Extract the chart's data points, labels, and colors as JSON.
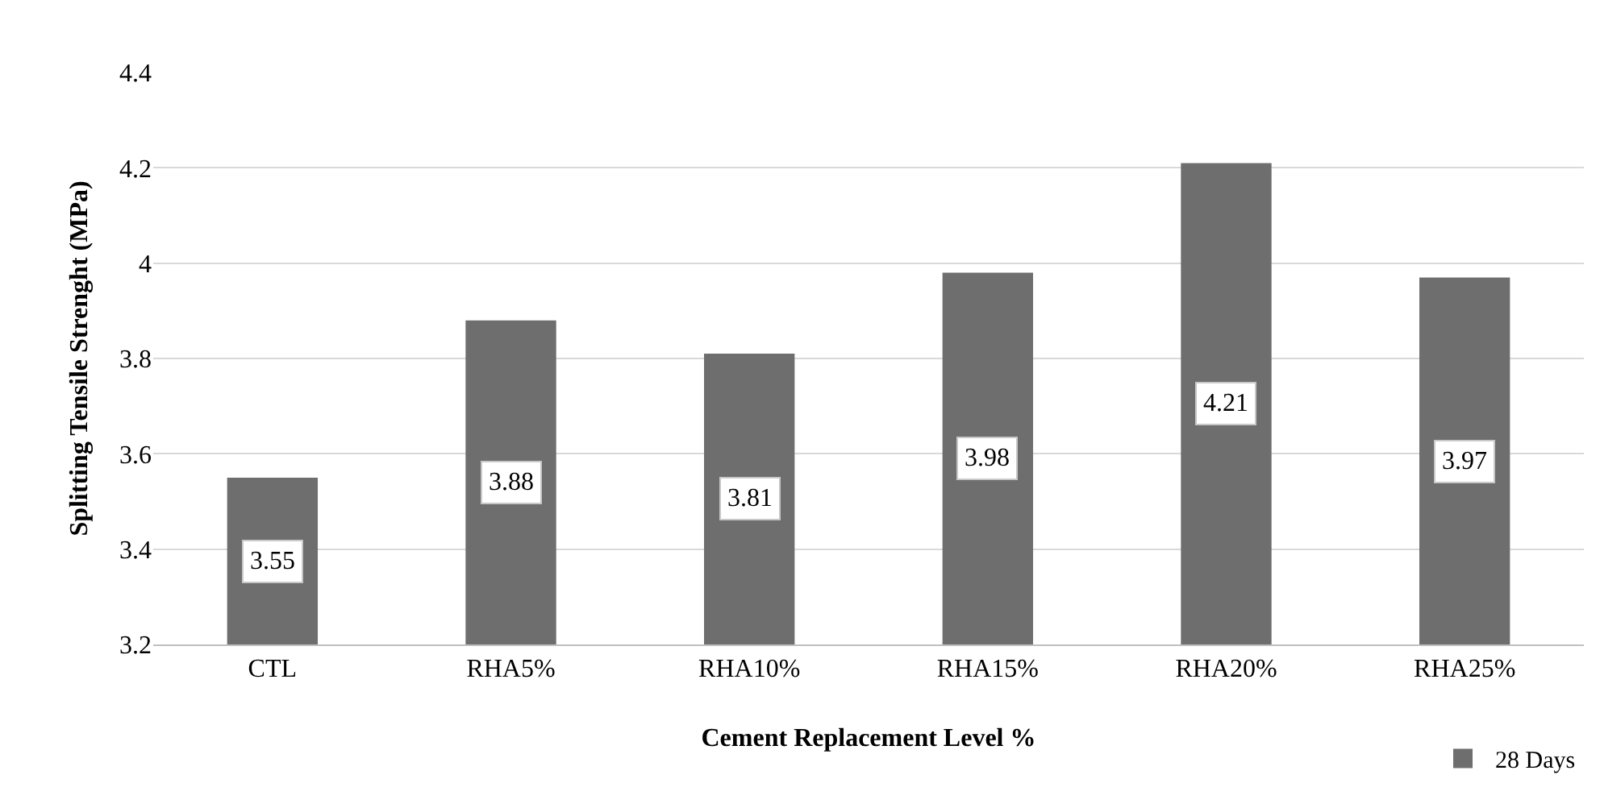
{
  "chart_data": {
    "type": "bar",
    "xlabel": "Cement Replacement Level %",
    "ylabel": "Splitting Tensile Strenght (MPa)",
    "categories": [
      "CTL",
      "RHA5%",
      "RHA10%",
      "RHA15%",
      "RHA20%",
      "RHA25%"
    ],
    "series": [
      {
        "name": "28 Days",
        "color": "#6e6e6e",
        "values": [
          3.55,
          3.88,
          3.81,
          3.98,
          4.21,
          3.97
        ]
      }
    ],
    "ylim": [
      3.2,
      4.4
    ],
    "yticks": [
      3.2,
      3.4,
      3.6,
      3.8,
      {
        "value": 4,
        "label": "4"
      },
      4.2,
      4.4
    ],
    "grid": "y",
    "legend": "bottom right",
    "data_labels": true
  }
}
